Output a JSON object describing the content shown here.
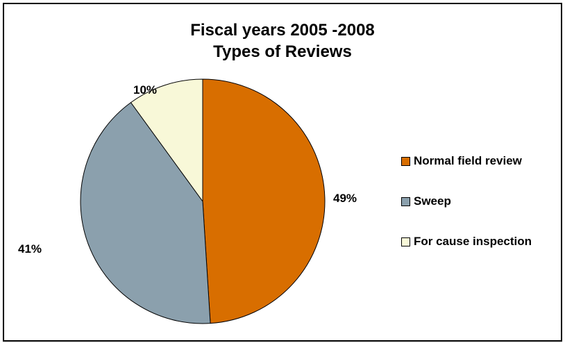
{
  "chart_data": {
    "type": "pie",
    "title": [
      "Fiscal years 2005 -2008",
      "Types of Reviews"
    ],
    "categories": [
      "Normal field review",
      "Sweep",
      "For cause inspection"
    ],
    "values": [
      49,
      41,
      10
    ],
    "labels": [
      "49%",
      "41%",
      "10%"
    ],
    "colors": [
      "#D86E00",
      "#8BA0AD",
      "#F8F8D8"
    ],
    "legend_position": "right"
  }
}
